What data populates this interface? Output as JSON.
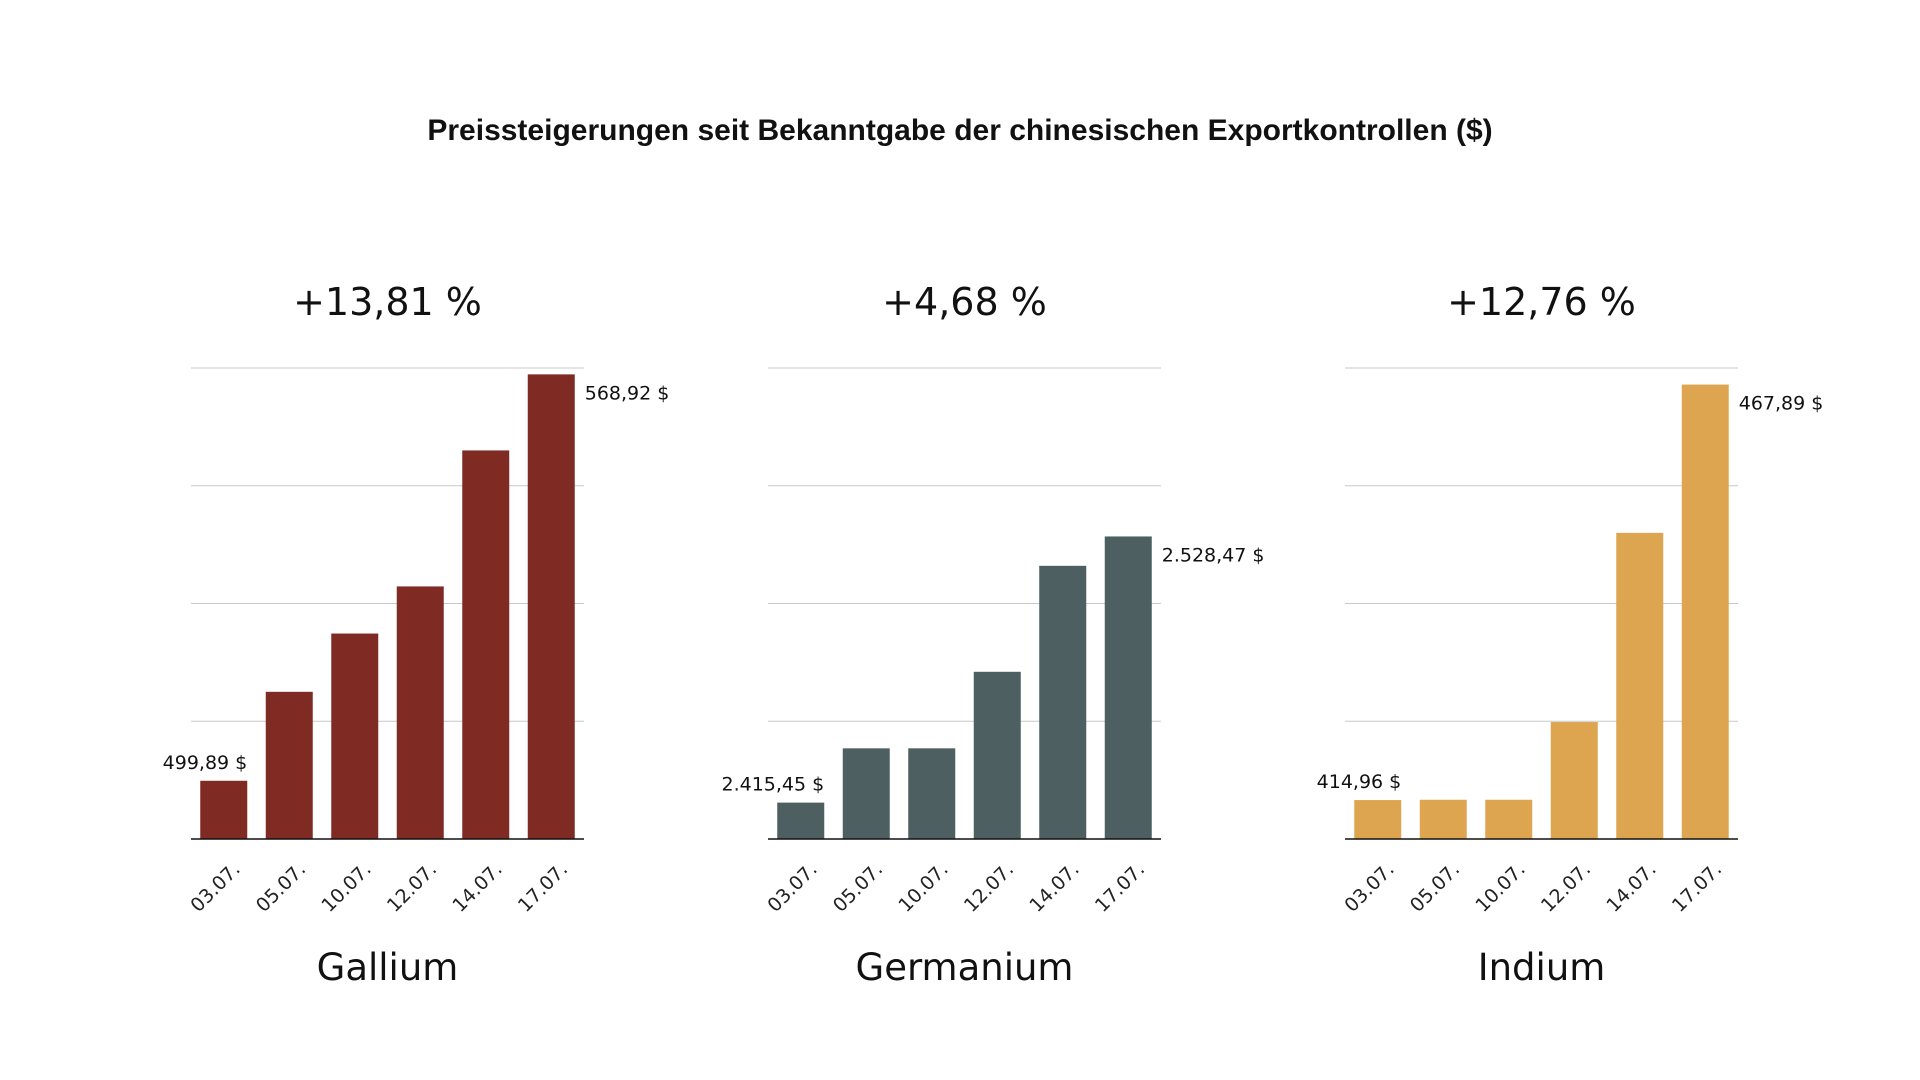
{
  "title": "Preissteigerungen seit Bekanntgabe der chinesischen Exportkontrollen ($)",
  "chart_data": [
    {
      "type": "bar",
      "title": "Gallium",
      "subtitle": "+13,81 %",
      "color": "#7f2b23",
      "categories": [
        "03.07.",
        "05.07.",
        "10.07.",
        "12.07.",
        "14.07.",
        "17.07."
      ],
      "values": [
        499.89,
        515.0,
        524.9,
        532.9,
        556.0,
        568.92
      ],
      "data_labels": {
        "first": "499,89 $",
        "last": "568,92 $"
      },
      "ylim": [
        490,
        570
      ],
      "gridlines": 4,
      "grid": true
    },
    {
      "type": "bar",
      "title": "Germanium",
      "subtitle": "+4,68 %",
      "color": "#4d5f61",
      "categories": [
        "03.07.",
        "05.07.",
        "10.07.",
        "12.07.",
        "14.07.",
        "17.07."
      ],
      "values": [
        2415.45,
        2438.5,
        2438.5,
        2471.0,
        2516.0,
        2528.47
      ],
      "data_labels": {
        "first": "2.415,45 $",
        "last": "2.528,47 $"
      },
      "ylim": [
        2400,
        2600
      ],
      "gridlines": 4,
      "grid": true
    },
    {
      "type": "bar",
      "title": "Indium",
      "subtitle": "+12,76 %",
      "color": "#dea550",
      "categories": [
        "03.07.",
        "05.07.",
        "10.07.",
        "12.07.",
        "14.07.",
        "17.07."
      ],
      "values": [
        414.96,
        415.0,
        415.0,
        424.9,
        449.0,
        467.89
      ],
      "data_labels": {
        "first": "414,96 $",
        "last": "467,89 $"
      },
      "ylim": [
        410,
        470
      ],
      "gridlines": 4,
      "grid": true
    }
  ]
}
